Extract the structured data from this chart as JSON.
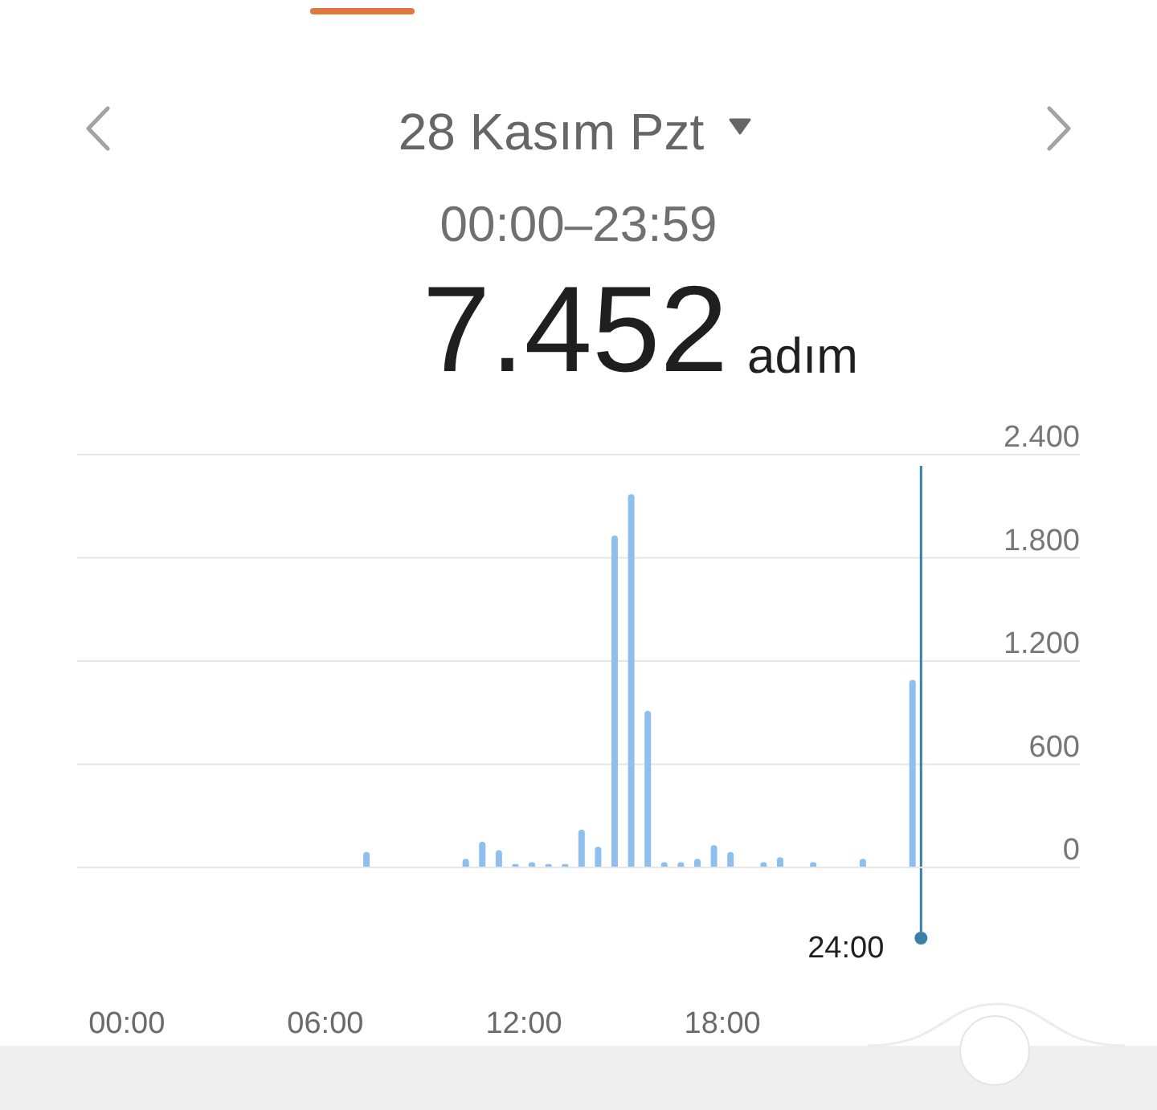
{
  "chart_data": {
    "type": "bar",
    "title": "28 Kasım Pzt",
    "subtitle": "00:00–23:59",
    "annotations": [
      "7.452",
      "adım"
    ],
    "x": [
      7.25,
      10.25,
      10.75,
      11.25,
      11.75,
      12.25,
      12.75,
      13.25,
      13.75,
      14.25,
      14.75,
      15.25,
      15.75,
      16.25,
      16.75,
      17.25,
      17.75,
      18.25,
      19.25,
      19.75,
      20.75,
      22.25,
      23.75
    ],
    "values": [
      90,
      50,
      150,
      100,
      20,
      30,
      20,
      20,
      220,
      120,
      1930,
      2170,
      910,
      30,
      30,
      50,
      130,
      90,
      30,
      60,
      30,
      50,
      1090
    ],
    "color": "#8fbfee",
    "xlim": [
      -1.5,
      28.8
    ],
    "xticks": [
      {
        "value": 0,
        "label": "00:00"
      },
      {
        "value": 6,
        "label": "06:00"
      },
      {
        "value": 12,
        "label": "12:00"
      },
      {
        "value": 18,
        "label": "18:00"
      }
    ],
    "ylim": [
      0,
      2400
    ],
    "yticks": [
      0,
      600,
      {
        "value": 1200,
        "label": "1.200"
      },
      {
        "value": 1800,
        "label": "1.800"
      },
      {
        "value": 2400,
        "label": "2.400"
      }
    ],
    "grid": "y",
    "ref_lines": [
      {
        "axis": "x",
        "value": 24,
        "label": "24:00",
        "color": "#3a7fa8"
      }
    ]
  }
}
